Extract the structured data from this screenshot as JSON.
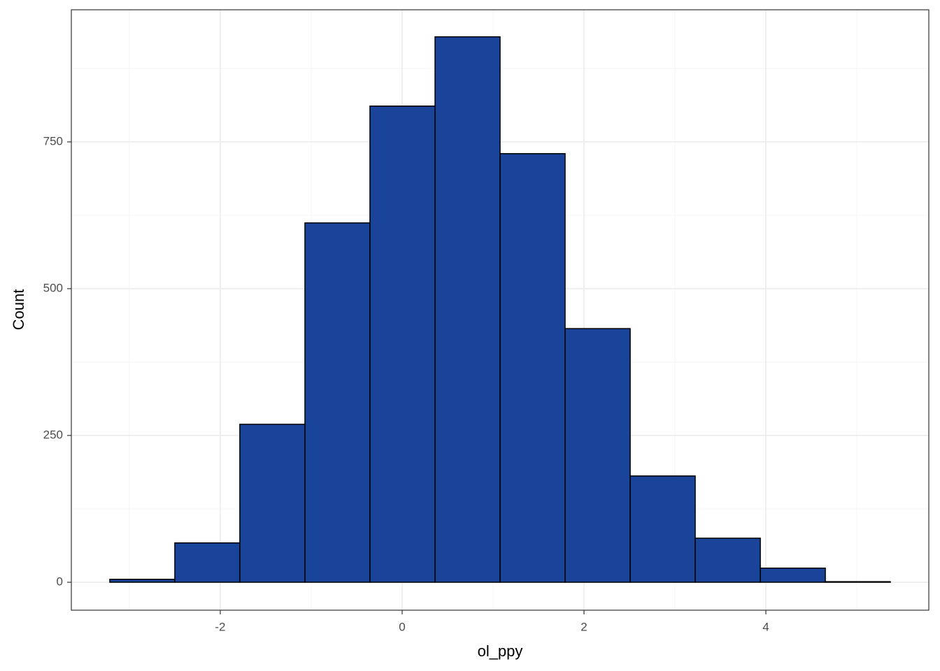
{
  "chart_data": {
    "type": "histogram",
    "x_label": "ol_ppy",
    "y_label": "Count",
    "bins": [
      -3.215,
      -2.5,
      -1.785,
      -1.069,
      -0.354,
      0.362,
      1.077,
      1.792,
      2.508,
      3.223,
      3.939,
      4.654,
      5.369
    ],
    "values": [
      5,
      67,
      269,
      612,
      811,
      929,
      730,
      432,
      181,
      75,
      24,
      1
    ],
    "color": "#1a4499",
    "edge_color": "#000000",
    "xlim": [
      -3.638,
      5.792
    ],
    "ylim": [
      -47.6,
      975
    ],
    "xticks": [
      -2,
      0,
      2,
      4
    ],
    "yticks": [
      0,
      250,
      500,
      750
    ],
    "xminor": [
      -3,
      -1,
      1,
      3,
      5
    ],
    "yminor": [
      125,
      375,
      625,
      875
    ],
    "grid": true
  }
}
